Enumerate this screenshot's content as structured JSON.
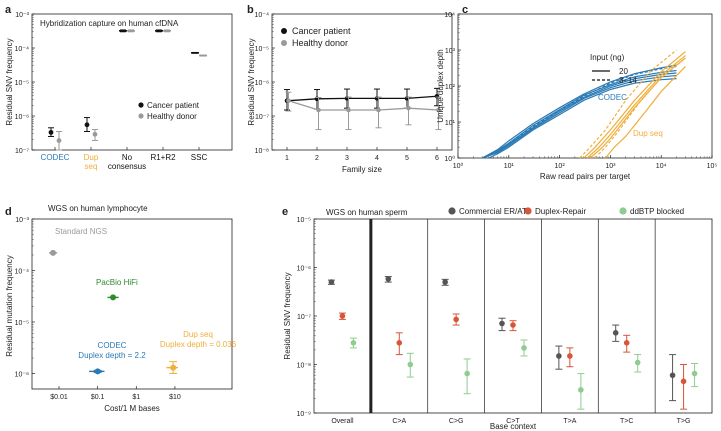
{
  "colors": {
    "cancer": "#111111",
    "healthy": "#9a9a9a",
    "codec": "#2a7ab5",
    "dup": "#f0ae3a",
    "commercial": "#555555",
    "duplex_repair": "#d8553a",
    "ddbtp": "#8fcc8f"
  },
  "chart_data": [
    {
      "id": "a",
      "type": "scatter",
      "panel_label": "a",
      "title": "Hybridization capture on human cfDNA",
      "ylabel": "Residual SNV frequency",
      "xlabel": "",
      "yscale": "log",
      "ylim": [
        1e-07,
        0.001
      ],
      "y_ticks": [
        "10⁻⁷",
        "10⁻⁶",
        "10⁻⁵",
        "10⁻⁴",
        "10⁻³"
      ],
      "categories": [
        {
          "lines": [
            "CODEC"
          ],
          "color": "codec"
        },
        {
          "lines": [
            "Dup",
            "seq"
          ],
          "color": "dup"
        },
        {
          "lines": [
            "No",
            "consensus"
          ],
          "color": "black"
        },
        {
          "lines": [
            "R1+R2"
          ],
          "color": "black"
        },
        {
          "lines": [
            "SSC"
          ],
          "color": "black"
        }
      ],
      "legend": [
        "Cancer patient",
        "Healthy donor"
      ],
      "series": [
        {
          "name": "Cancer patient",
          "values": [
            3.3e-07,
            5.5e-07,
            0.00032,
            0.00032,
            7.2e-05
          ],
          "low": [
            2.5e-07,
            3.5e-07,
            0.0003,
            0.0003,
            7e-05
          ],
          "high": [
            4.5e-07,
            9e-07,
            0.00034,
            0.00034,
            7.4e-05
          ]
        },
        {
          "name": "Healthy donor",
          "values": [
            1.9e-07,
            2.9e-07,
            0.00032,
            0.00032,
            6e-05
          ],
          "low": [
            1e-07,
            1.9e-07,
            0.0003,
            0.0003,
            5.8e-05
          ],
          "high": [
            3.5e-07,
            4e-07,
            0.00034,
            0.00034,
            6.2e-05
          ]
        }
      ]
    },
    {
      "id": "b",
      "type": "line",
      "panel_label": "b",
      "title": "",
      "ylabel": "Residual SNV frequency",
      "xlabel": "Family size",
      "yscale": "log",
      "ylim": [
        1e-08,
        0.0001
      ],
      "y_ticks": [
        "10⁻⁸",
        "10⁻⁷",
        "10⁻⁶",
        "10⁻⁵",
        "10⁻⁴"
      ],
      "x": [
        1,
        2,
        3,
        4,
        5,
        6
      ],
      "legend": [
        "Cancer patient",
        "Healthy donor"
      ],
      "series": [
        {
          "name": "Cancer patient",
          "values": [
            2.8e-07,
            3.2e-07,
            3.3e-07,
            3.3e-07,
            3.3e-07,
            3.8e-07
          ],
          "low": [
            1.5e-07,
            1.6e-07,
            1.7e-07,
            1.7e-07,
            1.7e-07,
            2e-07
          ],
          "high": [
            6e-07,
            6e-07,
            6.2e-07,
            6.2e-07,
            6.2e-07,
            6.5e-07
          ]
        },
        {
          "name": "Healthy donor",
          "values": [
            2.8e-07,
            1.5e-07,
            1.5e-07,
            1.5e-07,
            1.7e-07,
            1.5e-07
          ],
          "low": [
            1.4e-07,
            4e-08,
            4e-08,
            4.5e-08,
            5.5e-08,
            4e-08
          ],
          "high": [
            5e-07,
            3.5e-07,
            3.6e-07,
            3.6e-07,
            3.6e-07,
            3.6e-07
          ]
        }
      ]
    },
    {
      "id": "c",
      "type": "line",
      "panel_label": "c",
      "title": "",
      "ylabel": "Unique duplex depth",
      "xlabel": "Raw read pairs per target",
      "xscale": "log",
      "yscale": "log",
      "xlim": [
        1,
        100000
      ],
      "ylim": [
        1,
        10000
      ],
      "x_ticks": [
        "10⁰",
        "10¹",
        "10²",
        "10³",
        "10⁴",
        "10⁵"
      ],
      "y_ticks": [
        "10⁰",
        "10¹",
        "10²",
        "10³",
        "10⁴"
      ],
      "legend_title": "Input (ng)",
      "legend": [
        {
          "label": "20",
          "style": "solid"
        },
        {
          "label": "8–14",
          "style": "dashed"
        }
      ],
      "annotations": [
        "CODEC",
        "Dup seq"
      ],
      "series": [
        {
          "name": "CODEC",
          "style": "solid",
          "x": [
            3,
            6,
            10,
            30,
            100,
            300,
            1000,
            3000,
            10000,
            20000
          ],
          "y": [
            1,
            1.7,
            3,
            9,
            25,
            60,
            130,
            220,
            320,
            380
          ]
        },
        {
          "name": "CODEC",
          "style": "solid",
          "x": [
            3,
            6,
            10,
            30,
            100,
            300,
            1000,
            3000,
            10000,
            20000
          ],
          "y": [
            1,
            1.6,
            2.6,
            8,
            22,
            55,
            110,
            180,
            240,
            270
          ]
        },
        {
          "name": "CODEC",
          "style": "solid",
          "x": [
            3,
            6,
            10,
            30,
            100,
            300,
            1000,
            3000,
            10000,
            20000
          ],
          "y": [
            1,
            1.5,
            2.4,
            7,
            20,
            48,
            100,
            160,
            210,
            230
          ]
        },
        {
          "name": "CODEC",
          "style": "solid",
          "x": [
            3,
            6,
            10,
            30,
            100,
            300,
            1000,
            3000,
            10000,
            20000
          ],
          "y": [
            1,
            1.4,
            2.2,
            6.5,
            18,
            45,
            90,
            140,
            180,
            195
          ]
        },
        {
          "name": "CODEC",
          "style": "solid",
          "x": [
            4,
            6,
            10,
            30,
            100,
            300,
            1000,
            3000,
            10000,
            20000
          ],
          "y": [
            1,
            1.3,
            2,
            6,
            16,
            40,
            80,
            120,
            150,
            160
          ]
        },
        {
          "name": "CODEC",
          "style": "dashed",
          "x": [
            3,
            6,
            10,
            30,
            100,
            300,
            1000,
            3000,
            10000,
            20000
          ],
          "y": [
            1,
            1.5,
            2.5,
            7.5,
            21,
            52,
            120,
            210,
            300,
            350
          ]
        },
        {
          "name": "Dup seq",
          "style": "solid",
          "x": [
            300,
            500,
            1000,
            3000,
            10000,
            30000
          ],
          "y": [
            1,
            2,
            6,
            40,
            250,
            900
          ]
        },
        {
          "name": "Dup seq",
          "style": "solid",
          "x": [
            350,
            600,
            1000,
            3000,
            10000,
            30000
          ],
          "y": [
            1,
            2,
            4.5,
            30,
            200,
            700
          ]
        },
        {
          "name": "Dup seq",
          "style": "solid",
          "x": [
            400,
            700,
            1000,
            3000,
            10000,
            30000
          ],
          "y": [
            1,
            2,
            3.5,
            25,
            170,
            600
          ]
        },
        {
          "name": "Dup seq",
          "style": "solid",
          "x": [
            800,
            1200,
            2000,
            5000,
            10000,
            30000
          ],
          "y": [
            1,
            2,
            4,
            20,
            70,
            350
          ]
        },
        {
          "name": "Dup seq",
          "style": "dashed",
          "x": [
            250,
            400,
            800,
            2000,
            6000,
            20000
          ],
          "y": [
            1,
            2,
            6,
            40,
            250,
            1000
          ]
        },
        {
          "name": "Dup seq",
          "style": "dashed",
          "x": [
            500,
            800,
            1500,
            4000,
            10000,
            30000
          ],
          "y": [
            1,
            2,
            6,
            40,
            170,
            600
          ]
        }
      ]
    },
    {
      "id": "d",
      "type": "scatter",
      "panel_label": "d",
      "title": "WGS on human lymphocyte",
      "ylabel": "Residual mutation frequency",
      "xlabel": "Cost/1 M bases",
      "xscale": "log",
      "yscale": "log",
      "xlim": [
        0.002,
        300
      ],
      "ylim": [
        5e-07,
        0.001
      ],
      "x_ticks": [
        "$0.01",
        "$0.1",
        "$1",
        "$10"
      ],
      "y_ticks": [
        "10⁻⁶",
        "10⁻⁵",
        "10⁻⁴",
        "10⁻³"
      ],
      "points": [
        {
          "label_lines": [
            "Standard NGS"
          ],
          "x": 0.007,
          "y": 0.00022,
          "xerr": [
            0.0055,
            0.009
          ],
          "yerr": [
            0.00022,
            0.00022
          ],
          "color": "healthy"
        },
        {
          "label_lines": [
            "PacBio HiFi"
          ],
          "x": 0.25,
          "y": 3e-05,
          "xerr": [
            0.18,
            0.35
          ],
          "yerr": [
            3e-05,
            3e-05
          ],
          "color": "#2e8b2e"
        },
        {
          "label_lines": [
            "CODEC",
            "Duplex depth = 2.2"
          ],
          "x": 0.1,
          "y": 1.1e-06,
          "xerr": [
            0.06,
            0.15
          ],
          "yerr": [
            1.05e-06,
            1.15e-06
          ],
          "color": "codec"
        },
        {
          "label_lines": [
            "Dup seq",
            "Duplex depth = 0.036"
          ],
          "x": 9,
          "y": 1.3e-06,
          "xerr": [
            6,
            12
          ],
          "yerr": [
            1e-06,
            1.7e-06
          ],
          "color": "dup"
        }
      ]
    },
    {
      "id": "e",
      "type": "scatter",
      "panel_label": "e",
      "title": "WGS on human sperm",
      "ylabel": "Residual SNV frequency",
      "xlabel": "Base context",
      "yscale": "log",
      "ylim": [
        1e-09,
        1e-05
      ],
      "y_ticks": [
        "10⁻⁹",
        "10⁻⁸",
        "10⁻⁷",
        "10⁻⁶",
        "10⁻⁵"
      ],
      "categories": [
        "Overall",
        "C>A",
        "C>G",
        "C>T",
        "T>A",
        "T>C",
        "T>G"
      ],
      "legend": [
        "Commercial ER/AT",
        "Duplex-Repair",
        "ddBTP blocked"
      ],
      "series": [
        {
          "name": "Commercial ER/AT",
          "color": "commercial",
          "values": [
            5e-07,
            5.8e-07,
            5e-07,
            7e-08,
            1.5e-08,
            4.5e-08,
            6e-09
          ],
          "low": [
            4.5e-07,
            5e-07,
            4.3e-07,
            5e-08,
            8e-09,
            3e-08,
            1.8e-09
          ],
          "high": [
            5.5e-07,
            6.5e-07,
            5.7e-07,
            9e-08,
            2.4e-08,
            6.5e-08,
            1.6e-08
          ]
        },
        {
          "name": "Duplex-Repair",
          "color": "duplex_repair",
          "values": [
            1e-07,
            2.8e-08,
            8.5e-08,
            6.5e-08,
            1.5e-08,
            2.8e-08,
            4.5e-09
          ],
          "low": [
            8.5e-08,
            1.6e-08,
            6.5e-08,
            5e-08,
            9e-09,
            1.8e-08,
            1.2e-09
          ],
          "high": [
            1.15e-07,
            4.5e-08,
            1.1e-07,
            8e-08,
            2.2e-08,
            4e-08,
            1e-08
          ]
        },
        {
          "name": "ddBTP blocked",
          "color": "ddbtp",
          "values": [
            2.8e-08,
            1e-08,
            6.5e-09,
            2.2e-08,
            3e-09,
            1.1e-08,
            6.5e-09
          ],
          "low": [
            2.2e-08,
            5.5e-09,
            2.5e-09,
            1.5e-08,
            1.2e-09,
            7e-09,
            3.5e-09
          ],
          "high": [
            3.5e-08,
            1.7e-08,
            1.3e-08,
            3.2e-08,
            6.5e-09,
            1.6e-08,
            1.05e-08
          ]
        }
      ]
    }
  ]
}
